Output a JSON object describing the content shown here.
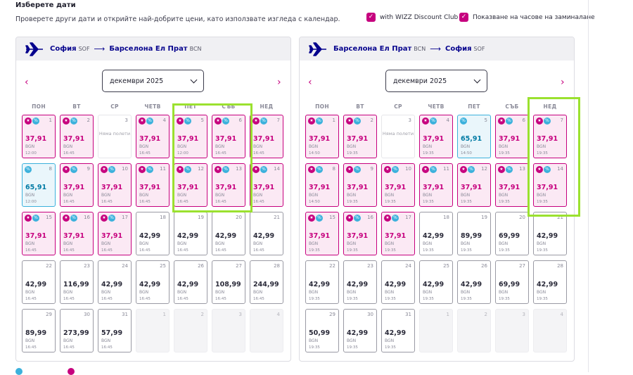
{
  "header": {
    "title": "Изберете дати",
    "subtitle": "Проверете други дати и открийте най-добрите цени, като използвате изгледа с календар.",
    "opt_discount_label": "with WIZZ Discount Club",
    "opt_times_label": "Показване на часове на заминалане"
  },
  "outbound": {
    "from_city": "София",
    "from_code": "SOF",
    "to_city": "Барселона Ел Прат",
    "to_code": "BCN",
    "month": "декември 2025"
  },
  "inbound": {
    "from_city": "Барселона Ел Прат",
    "from_code": "BCN",
    "to_city": "София",
    "to_code": "SOF",
    "month": "декември 2025"
  },
  "weekdays": [
    "ПОН",
    "ВТ",
    "СР",
    "ЧЕТВ",
    "ПЕТ",
    "СЪБ",
    "НЕД"
  ],
  "not_found_text": "Няма полети",
  "currency": "BGN",
  "icons": {
    "star_badge": "star-icon",
    "discount_badge": "percent-icon",
    "plane": "plane-icon"
  },
  "colors": {
    "promo": "#c6007e",
    "discount": "#3cb1dc",
    "highlight": "#9be12f",
    "brand": "#06038d"
  },
  "outbound_days": [
    {
      "d": "1",
      "p": "37,91",
      "t": "12:00",
      "k": "promo",
      "b": 2
    },
    {
      "d": "2",
      "p": "37,91",
      "t": "16:45",
      "k": "promo",
      "b": 2
    },
    {
      "d": "3",
      "k": "nf"
    },
    {
      "d": "4",
      "p": "37,91",
      "t": "16:45",
      "k": "promo",
      "b": 2
    },
    {
      "d": "5",
      "p": "37,91",
      "t": "12:00",
      "k": "promo",
      "b": 2
    },
    {
      "d": "6",
      "p": "37,91",
      "t": "16:45",
      "k": "promo",
      "b": 2
    },
    {
      "d": "7",
      "p": "37,91",
      "t": "16:45",
      "k": "promo",
      "b": 2
    },
    {
      "d": "8",
      "p": "65,91",
      "t": "12:00",
      "k": "disc",
      "b": 1
    },
    {
      "d": "9",
      "p": "37,91",
      "t": "16:45",
      "k": "promo",
      "b": 2
    },
    {
      "d": "10",
      "p": "37,91",
      "t": "16:45",
      "k": "promo",
      "b": 2
    },
    {
      "d": "11",
      "p": "37,91",
      "t": "16:45",
      "k": "promo",
      "b": 2
    },
    {
      "d": "12",
      "p": "37,91",
      "t": "16:45",
      "k": "promo",
      "b": 2
    },
    {
      "d": "13",
      "p": "37,91",
      "t": "16:45",
      "k": "promo",
      "b": 2
    },
    {
      "d": "14",
      "p": "37,91",
      "t": "16:45",
      "k": "promo",
      "b": 2
    },
    {
      "d": "15",
      "p": "37,91",
      "t": "16:45",
      "k": "promo",
      "b": 2
    },
    {
      "d": "16",
      "p": "37,91",
      "t": "16:45",
      "k": "promo",
      "b": 2
    },
    {
      "d": "17",
      "p": "37,91",
      "t": "16:45",
      "k": "promo",
      "b": 2
    },
    {
      "d": "18",
      "p": "42,99",
      "t": "16:45",
      "k": "reg",
      "b": 0
    },
    {
      "d": "19",
      "p": "42,99",
      "t": "16:45",
      "k": "reg",
      "b": 0
    },
    {
      "d": "20",
      "p": "42,99",
      "t": "16:45",
      "k": "reg",
      "b": 0
    },
    {
      "d": "21",
      "p": "42,99",
      "t": "16:45",
      "k": "reg",
      "b": 0
    },
    {
      "d": "22",
      "p": "42,99",
      "t": "16:45",
      "k": "reg",
      "b": 0
    },
    {
      "d": "23",
      "p": "116,99",
      "t": "16:45",
      "k": "reg",
      "b": 0
    },
    {
      "d": "24",
      "p": "42,99",
      "t": "16:45",
      "k": "reg",
      "b": 0
    },
    {
      "d": "25",
      "p": "42,99",
      "t": "16:45",
      "k": "reg",
      "b": 0
    },
    {
      "d": "26",
      "p": "42,99",
      "t": "16:45",
      "k": "reg",
      "b": 0
    },
    {
      "d": "27",
      "p": "108,99",
      "t": "16:45",
      "k": "reg",
      "b": 0
    },
    {
      "d": "28",
      "p": "244,99",
      "t": "16:45",
      "k": "reg",
      "b": 0
    },
    {
      "d": "29",
      "p": "89,99",
      "t": "16:45",
      "k": "reg",
      "b": 0
    },
    {
      "d": "30",
      "p": "273,99",
      "t": "16:45",
      "k": "reg",
      "b": 0
    },
    {
      "d": "31",
      "p": "57,99",
      "t": "16:45",
      "k": "reg",
      "b": 0
    },
    {
      "d": "1",
      "k": "out"
    },
    {
      "d": "2",
      "k": "out"
    },
    {
      "d": "3",
      "k": "out"
    },
    {
      "d": "4",
      "k": "out"
    }
  ],
  "inbound_days": [
    {
      "d": "1",
      "p": "37,91",
      "t": "14:50",
      "k": "promo",
      "b": 2
    },
    {
      "d": "2",
      "p": "37,91",
      "t": "19:35",
      "k": "promo",
      "b": 2
    },
    {
      "d": "3",
      "k": "nf"
    },
    {
      "d": "4",
      "p": "37,91",
      "t": "19:35",
      "k": "promo",
      "b": 2
    },
    {
      "d": "5",
      "p": "65,91",
      "t": "14:50",
      "k": "disc",
      "b": 1
    },
    {
      "d": "6",
      "p": "37,91",
      "t": "19:35",
      "k": "promo",
      "b": 2
    },
    {
      "d": "7",
      "p": "37,91",
      "t": "19:35",
      "k": "promo",
      "b": 2
    },
    {
      "d": "8",
      "p": "37,91",
      "t": "14:50",
      "k": "promo",
      "b": 2
    },
    {
      "d": "9",
      "p": "37,91",
      "t": "19:35",
      "k": "promo",
      "b": 2
    },
    {
      "d": "10",
      "p": "37,91",
      "t": "19:35",
      "k": "promo",
      "b": 2
    },
    {
      "d": "11",
      "p": "37,91",
      "t": "19:35",
      "k": "promo",
      "b": 2
    },
    {
      "d": "12",
      "p": "37,91",
      "t": "19:35",
      "k": "promo",
      "b": 2
    },
    {
      "d": "13",
      "p": "37,91",
      "t": "19:35",
      "k": "promo",
      "b": 2
    },
    {
      "d": "14",
      "p": "37,91",
      "t": "19:35",
      "k": "promo",
      "b": 2
    },
    {
      "d": "15",
      "p": "37,91",
      "t": "19:35",
      "k": "promo",
      "b": 2
    },
    {
      "d": "16",
      "p": "37,91",
      "t": "19:35",
      "k": "promo",
      "b": 2
    },
    {
      "d": "17",
      "p": "37,91",
      "t": "19:35",
      "k": "promo",
      "b": 2
    },
    {
      "d": "18",
      "p": "42,99",
      "t": "19:35",
      "k": "reg",
      "b": 0
    },
    {
      "d": "19",
      "p": "89,99",
      "t": "19:35",
      "k": "reg",
      "b": 0
    },
    {
      "d": "20",
      "p": "69,99",
      "t": "19:35",
      "k": "reg",
      "b": 0
    },
    {
      "d": "21",
      "p": "42,99",
      "t": "19:35",
      "k": "reg",
      "b": 0
    },
    {
      "d": "22",
      "p": "42,99",
      "t": "19:35",
      "k": "reg",
      "b": 0
    },
    {
      "d": "23",
      "p": "42,99",
      "t": "19:35",
      "k": "reg",
      "b": 0
    },
    {
      "d": "24",
      "p": "42,99",
      "t": "19:35",
      "k": "reg",
      "b": 0
    },
    {
      "d": "25",
      "p": "42,99",
      "t": "19:35",
      "k": "reg",
      "b": 0
    },
    {
      "d": "26",
      "p": "42,99",
      "t": "19:35",
      "k": "reg",
      "b": 0
    },
    {
      "d": "27",
      "p": "69,99",
      "t": "19:35",
      "k": "reg",
      "b": 0
    },
    {
      "d": "28",
      "p": "42,99",
      "t": "19:35",
      "k": "reg",
      "b": 0
    },
    {
      "d": "29",
      "p": "50,99",
      "t": "19:35",
      "k": "reg",
      "b": 0
    },
    {
      "d": "30",
      "p": "42,99",
      "t": "19:35",
      "k": "reg",
      "b": 0
    },
    {
      "d": "31",
      "p": "42,99",
      "t": "19:35",
      "k": "reg",
      "b": 0
    },
    {
      "d": "1",
      "k": "out"
    },
    {
      "d": "2",
      "k": "out"
    },
    {
      "d": "3",
      "k": "out"
    },
    {
      "d": "4",
      "k": "out"
    }
  ]
}
